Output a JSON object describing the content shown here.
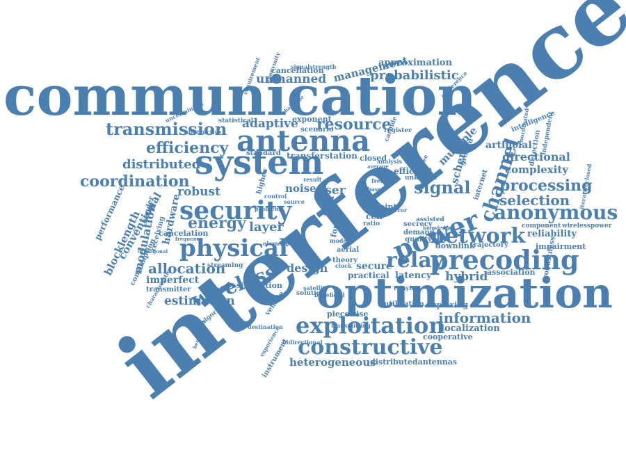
{
  "word_color": "#4a7fb0",
  "words": [
    "interference",
    "communication",
    "optimization",
    "system",
    "antenna",
    "precoding",
    "power",
    "security",
    "physical",
    "relay",
    "network",
    "exploitation",
    "constructive",
    "anonymous",
    "wireless",
    "channel",
    "signal",
    "transmission",
    "efficiency",
    "coordination",
    "resource",
    "processing",
    "selection",
    "allocation",
    "energy",
    "distributed",
    "information",
    "heterogeneous",
    "distributedantennas",
    "management",
    "probabilistic",
    "unmanned",
    "approximation",
    "adaptive",
    "robust",
    "layer",
    "modulation",
    "hardware",
    "blocklength",
    "conventional",
    "performance",
    "estimation",
    "imperfect",
    "transmitter",
    "design",
    "secure",
    "latency",
    "hybrid",
    "localization",
    "cooperative",
    "directional",
    "complexity",
    "reliability",
    "impairment",
    "artificial",
    "intelligence",
    "downlink",
    "trajectory",
    "piecewise",
    "duplexing",
    "utilization",
    "simulation",
    "vehicle",
    "algorithm",
    "instrument",
    "experience",
    "cancelation",
    "cancellation",
    "consumption",
    "noise",
    "user",
    "full",
    "multiple",
    "scheme",
    "internet",
    "ground",
    "transfer",
    "station",
    "closed",
    "exponent",
    "scenario",
    "standard",
    "statistical",
    "secrecy",
    "demand",
    "quality",
    "efficient",
    "unknown",
    "practical",
    "association",
    "robustness",
    "selection",
    "component",
    "wirelesspower",
    "iterativeclosed",
    "independent",
    "detection",
    "coordinated",
    "signalstrength",
    "anonymity",
    "requirement",
    "streaming",
    "sender",
    "receiving",
    "theory",
    "aerial",
    "cell",
    "joint",
    "ratio",
    "base",
    "rate",
    "form",
    "higher",
    "control",
    "source",
    "element",
    "problem",
    "result",
    "carbide",
    "register",
    "conference",
    "assisted",
    "bidirectional",
    "transmitting",
    "destination",
    "satellite",
    "solution",
    "mode",
    "clock",
    "beneficial",
    "relaying",
    "characteristic",
    "orthogonal",
    "frequency",
    "destructive",
    "uncertainties",
    "benchmark",
    "challenge",
    "analysis",
    "error",
    "knowledge",
    "degree",
    "freedom",
    "average"
  ]
}
